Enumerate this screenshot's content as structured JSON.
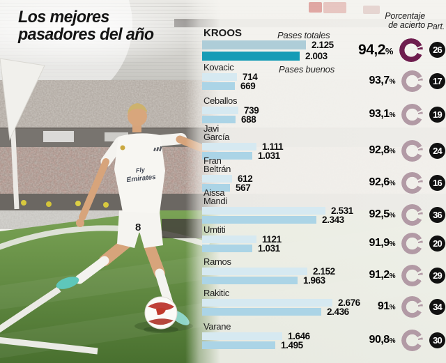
{
  "title": {
    "line1": "Los mejores",
    "line2": "pasadores del año"
  },
  "headers": {
    "accuracy_line1": "Porcentaje",
    "accuracy_line2": "de acierto",
    "participations": "Part."
  },
  "legend": {
    "totales": "Pases totales",
    "buenos": "Pases buenos"
  },
  "photo": {
    "jersey_sponsor_line1": "Fly",
    "jersey_sponsor_line2": "Emirates",
    "shorts_number": "8"
  },
  "colors": {
    "bar_totales_highlight": "#aecdd8",
    "bar_buenos_highlight": "#169cb6",
    "bar_totales": "#d6e9f1",
    "bar_buenos": "#abd4e6",
    "donut_highlight": "#6e1d4e",
    "donut": "#b29aa5",
    "badge_bg": "#111111",
    "badge_text": "#ffffff"
  },
  "chart_data": {
    "type": "bar",
    "orientation": "horizontal",
    "series": [
      "Pases totales",
      "Pases buenos"
    ],
    "value_note": "passes per player; percentage = pass accuracy; Part. = matches played",
    "players": [
      {
        "name": "KROOS",
        "pases_totales": "2.125",
        "pases_buenos": "2.003",
        "porcentaje": "94,2",
        "part": "26",
        "highlight": true
      },
      {
        "name": "Kovacic",
        "pases_totales": "714",
        "pases_buenos": "669",
        "porcentaje": "93,7",
        "part": "17",
        "highlight": false
      },
      {
        "name": "Ceballos",
        "pases_totales": "739",
        "pases_buenos": "688",
        "porcentaje": "93,1",
        "part": "19",
        "highlight": false
      },
      {
        "name": "Javi García",
        "pases_totales": "1.111",
        "pases_buenos": "1.031",
        "porcentaje": "92,8",
        "part": "24",
        "highlight": false
      },
      {
        "name": "Fran Beltrán",
        "pases_totales": "612",
        "pases_buenos": "567",
        "porcentaje": "92,6",
        "part": "16",
        "highlight": false
      },
      {
        "name": "Aissa Mandi",
        "pases_totales": "2.531",
        "pases_buenos": "2.343",
        "porcentaje": "92,5",
        "part": "36",
        "highlight": false
      },
      {
        "name": "Umtiti",
        "pases_totales": "1121",
        "pases_buenos": "1.031",
        "porcentaje": "91,9",
        "part": "20",
        "highlight": false
      },
      {
        "name": "Ramos",
        "pases_totales": "2.152",
        "pases_buenos": "1.963",
        "porcentaje": "91,2",
        "part": "29",
        "highlight": false
      },
      {
        "name": "Rakitic",
        "pases_totales": "2.676",
        "pases_buenos": "2.436",
        "porcentaje": "91",
        "part": "34",
        "highlight": false
      },
      {
        "name": "Varane",
        "pases_totales": "1.646",
        "pases_buenos": "1.495",
        "porcentaje": "90,8",
        "part": "30",
        "highlight": false
      }
    ]
  }
}
